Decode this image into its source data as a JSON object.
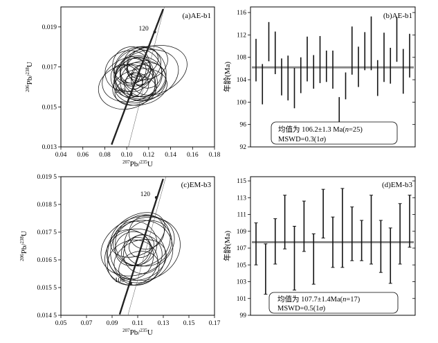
{
  "chart_data": [
    {
      "type": "concordia",
      "panel_label": "(a)AE-b1",
      "xlabel_pre": "207",
      "xlabel_el": "Pb/",
      "xlabel_pre2": "235",
      "xlabel_u": "U",
      "ylabel_pre": "206",
      "ylabel_el": "Pb/",
      "ylabel_pre2": "238",
      "ylabel_u": "U",
      "xlim": [
        0.04,
        0.18
      ],
      "ylim": [
        0.013,
        0.02
      ],
      "xticks": [
        0.04,
        0.06,
        0.08,
        0.1,
        0.12,
        0.14,
        0.16,
        0.18
      ],
      "xtick_labels": [
        "0.04",
        "0.06",
        "0.08",
        "0.10",
        "0.12",
        "0.14",
        "0.16",
        "0.18"
      ],
      "yticks": [
        0.013,
        0.015,
        0.017,
        0.019
      ],
      "ytick_labels": [
        "0.013",
        "0.015",
        "0.017",
        "0.019"
      ],
      "age_markers": [
        {
          "label": "100",
          "x": 0.104,
          "y": 0.01564
        },
        {
          "label": "120",
          "x": 0.1255,
          "y": 0.01875
        }
      ],
      "ellipses": [
        {
          "x": 0.105,
          "y": 0.0164,
          "rx": 0.028,
          "ry": 0.0011,
          "rot": -18
        },
        {
          "x": 0.112,
          "y": 0.0167,
          "rx": 0.024,
          "ry": 0.0013,
          "rot": -22
        },
        {
          "x": 0.108,
          "y": 0.0162,
          "rx": 0.02,
          "ry": 0.001,
          "rot": -15
        },
        {
          "x": 0.118,
          "y": 0.0166,
          "rx": 0.03,
          "ry": 0.0012,
          "rot": -20
        },
        {
          "x": 0.11,
          "y": 0.017,
          "rx": 0.022,
          "ry": 0.0009,
          "rot": -25
        },
        {
          "x": 0.1,
          "y": 0.016,
          "rx": 0.026,
          "ry": 0.0011,
          "rot": -12
        },
        {
          "x": 0.122,
          "y": 0.0168,
          "rx": 0.034,
          "ry": 0.0012,
          "rot": -18
        },
        {
          "x": 0.107,
          "y": 0.0166,
          "rx": 0.018,
          "ry": 0.0008,
          "rot": -30
        },
        {
          "x": 0.115,
          "y": 0.0163,
          "rx": 0.021,
          "ry": 0.001,
          "rot": -14
        },
        {
          "x": 0.104,
          "y": 0.0171,
          "rx": 0.017,
          "ry": 0.0009,
          "rot": -28
        },
        {
          "x": 0.112,
          "y": 0.016,
          "rx": 0.025,
          "ry": 0.0009,
          "rot": -10
        },
        {
          "x": 0.119,
          "y": 0.0172,
          "rx": 0.019,
          "ry": 0.0008,
          "rot": -24
        },
        {
          "x": 0.101,
          "y": 0.0168,
          "rx": 0.021,
          "ry": 0.001,
          "rot": -20
        },
        {
          "x": 0.11,
          "y": 0.0165,
          "rx": 0.014,
          "ry": 0.0011,
          "rot": -35
        },
        {
          "x": 0.108,
          "y": 0.0158,
          "rx": 0.019,
          "ry": 0.0007,
          "rot": -12
        },
        {
          "x": 0.116,
          "y": 0.0169,
          "rx": 0.015,
          "ry": 0.001,
          "rot": -30
        },
        {
          "x": 0.1,
          "y": 0.0163,
          "rx": 0.013,
          "ry": 0.0009,
          "rot": -40
        },
        {
          "x": 0.113,
          "y": 0.0173,
          "rx": 0.016,
          "ry": 0.0007,
          "rot": -20
        },
        {
          "x": 0.106,
          "y": 0.0168,
          "rx": 0.012,
          "ry": 0.0006,
          "rot": -35
        },
        {
          "x": 0.12,
          "y": 0.0164,
          "rx": 0.016,
          "ry": 0.0008,
          "rot": -18
        },
        {
          "x": 0.109,
          "y": 0.0161,
          "rx": 0.011,
          "ry": 0.0006,
          "rot": -25
        },
        {
          "x": 0.114,
          "y": 0.0166,
          "rx": 0.01,
          "ry": 0.0005,
          "rot": -30
        },
        {
          "x": 0.103,
          "y": 0.0166,
          "rx": 0.009,
          "ry": 0.0005,
          "rot": -40
        },
        {
          "x": 0.111,
          "y": 0.0169,
          "rx": 0.011,
          "ry": 0.0006,
          "rot": -22
        },
        {
          "x": 0.107,
          "y": 0.0163,
          "rx": 0.008,
          "ry": 0.0004,
          "rot": -30
        }
      ]
    },
    {
      "type": "bar",
      "panel_label": "(b)AE-b1",
      "ylabel": "年龄(Ma)",
      "ylim": [
        92,
        117
      ],
      "yticks": [
        92,
        96,
        100,
        104,
        108,
        112,
        116
      ],
      "ytick_labels": [
        "92",
        "96",
        "100",
        "104",
        "108",
        "112",
        "116"
      ],
      "mean": 106.2,
      "values": [
        {
          "center": 107.5,
          "half": 3.8
        },
        {
          "center": 103.2,
          "half": 3.6
        },
        {
          "center": 110.8,
          "half": 3.5
        },
        {
          "center": 108.8,
          "half": 3.8
        },
        {
          "center": 104.5,
          "half": 3.3
        },
        {
          "center": 104.3,
          "half": 4.0
        },
        {
          "center": 102.5,
          "half": 3.6
        },
        {
          "center": 104.8,
          "half": 3.2
        },
        {
          "center": 107.7,
          "half": 4.0
        },
        {
          "center": 105.4,
          "half": 3.0
        },
        {
          "center": 107.6,
          "half": 4.2
        },
        {
          "center": 106.4,
          "half": 2.8
        },
        {
          "center": 105.8,
          "half": 3.4
        },
        {
          "center": 96.9,
          "half": 4.0
        },
        {
          "center": 102.9,
          "half": 2.4
        },
        {
          "center": 109.2,
          "half": 4.3
        },
        {
          "center": 106.3,
          "half": 3.6
        },
        {
          "center": 109.1,
          "half": 3.4
        },
        {
          "center": 110.5,
          "half": 4.8
        },
        {
          "center": 104.3,
          "half": 3.2
        },
        {
          "center": 108.0,
          "half": 4.4
        },
        {
          "center": 106.5,
          "half": 3.2
        },
        {
          "center": 111.2,
          "half": 4.0
        },
        {
          "center": 105.5,
          "half": 4.0
        },
        {
          "center": 108.3,
          "half": 3.9
        }
      ],
      "box_line1": "均值为 106.2±1.3 Ma(",
      "box_n": "n",
      "box_line1b": "=25)",
      "box_line2a": "MSWD=0.3(1",
      "box_sigma": "σ",
      "box_line2b": ")"
    },
    {
      "type": "concordia",
      "panel_label": "(c)EM-b3",
      "xlabel_pre": "207",
      "xlabel_el": "Pb/",
      "xlabel_pre2": "235",
      "xlabel_u": "U",
      "ylabel_pre": "206",
      "ylabel_el": "Pb/",
      "ylabel_pre2": "238",
      "ylabel_u": "U",
      "xlim": [
        0.05,
        0.17
      ],
      "ylim": [
        0.0145,
        0.0195
      ],
      "xticks": [
        0.05,
        0.07,
        0.09,
        0.11,
        0.13,
        0.15,
        0.17
      ],
      "xtick_labels": [
        "0.05",
        "0.07",
        "0.09",
        "0.11",
        "0.13",
        "0.15",
        "0.17"
      ],
      "yticks": [
        0.0145,
        0.0155,
        0.0165,
        0.0175,
        0.0185,
        0.0195
      ],
      "ytick_labels": [
        "0.014 5",
        "0.015 5",
        "0.016 5",
        "0.017 5",
        "0.018 5",
        "0.019 5"
      ],
      "age_markers": [
        {
          "label": "100",
          "x": 0.1045,
          "y": 0.01565
        },
        {
          "label": "120",
          "x": 0.1245,
          "y": 0.01875
        }
      ],
      "ellipses": [
        {
          "x": 0.11,
          "y": 0.017,
          "rx": 0.03,
          "ry": 0.001,
          "rot": -25
        },
        {
          "x": 0.112,
          "y": 0.0168,
          "rx": 0.026,
          "ry": 0.0011,
          "rot": -30
        },
        {
          "x": 0.108,
          "y": 0.0166,
          "rx": 0.024,
          "ry": 0.001,
          "rot": -22
        },
        {
          "x": 0.114,
          "y": 0.0172,
          "rx": 0.022,
          "ry": 0.0009,
          "rot": -28
        },
        {
          "x": 0.106,
          "y": 0.0164,
          "rx": 0.02,
          "ry": 0.0008,
          "rot": -20
        },
        {
          "x": 0.116,
          "y": 0.0169,
          "rx": 0.028,
          "ry": 0.0011,
          "rot": -26
        },
        {
          "x": 0.11,
          "y": 0.0174,
          "rx": 0.023,
          "ry": 0.0007,
          "rot": -30
        },
        {
          "x": 0.104,
          "y": 0.0167,
          "rx": 0.018,
          "ry": 0.0009,
          "rot": -24
        },
        {
          "x": 0.118,
          "y": 0.0171,
          "rx": 0.019,
          "ry": 0.0008,
          "rot": -32
        },
        {
          "x": 0.112,
          "y": 0.0165,
          "rx": 0.021,
          "ry": 0.0007,
          "rot": -20
        },
        {
          "x": 0.108,
          "y": 0.0171,
          "rx": 0.017,
          "ry": 0.0008,
          "rot": -34
        },
        {
          "x": 0.114,
          "y": 0.0167,
          "rx": 0.015,
          "ry": 0.0007,
          "rot": -28
        },
        {
          "x": 0.106,
          "y": 0.0169,
          "rx": 0.014,
          "ry": 0.0006,
          "rot": -36
        },
        {
          "x": 0.111,
          "y": 0.0162,
          "rx": 0.016,
          "ry": 0.0006,
          "rot": -18
        },
        {
          "x": 0.117,
          "y": 0.0175,
          "rx": 0.014,
          "ry": 0.0006,
          "rot": -30
        },
        {
          "x": 0.109,
          "y": 0.0168,
          "rx": 0.012,
          "ry": 0.0005,
          "rot": -32
        },
        {
          "x": 0.113,
          "y": 0.017,
          "rx": 0.01,
          "ry": 0.0004,
          "rot": -28
        }
      ]
    },
    {
      "type": "bar",
      "panel_label": "(d)EM-b3",
      "ylabel": "年龄(Ma)",
      "ylim": [
        99,
        115.5
      ],
      "yticks": [
        99,
        101,
        103,
        105,
        107,
        109,
        111,
        113,
        115
      ],
      "ytick_labels": [
        "99",
        "101",
        "103",
        "105",
        "107",
        "109",
        "111",
        "113",
        "115"
      ],
      "mean": 107.7,
      "values": [
        {
          "center": 107.5,
          "half": 2.5
        },
        {
          "center": 104.5,
          "half": 3.0
        },
        {
          "center": 107.8,
          "half": 2.7
        },
        {
          "center": 110.1,
          "half": 3.2
        },
        {
          "center": 105.8,
          "half": 3.8
        },
        {
          "center": 109.6,
          "half": 3.0
        },
        {
          "center": 105.7,
          "half": 3.0
        },
        {
          "center": 111.1,
          "half": 2.9
        },
        {
          "center": 107.7,
          "half": 3.0
        },
        {
          "center": 109.4,
          "half": 4.7
        },
        {
          "center": 108.7,
          "half": 3.2
        },
        {
          "center": 107.9,
          "half": 2.4
        },
        {
          "center": 109.2,
          "half": 4.1
        },
        {
          "center": 107.2,
          "half": 3.1
        },
        {
          "center": 106.1,
          "half": 3.3
        },
        {
          "center": 108.7,
          "half": 3.6
        },
        {
          "center": 110.2,
          "half": 3.1
        }
      ],
      "box_line1": "均值为 107.7±1.4Ma(",
      "box_n": "n",
      "box_line1b": "=17)",
      "box_line2a": "MSWD=0.5(1",
      "box_sigma": "σ",
      "box_line2b": ")"
    }
  ]
}
